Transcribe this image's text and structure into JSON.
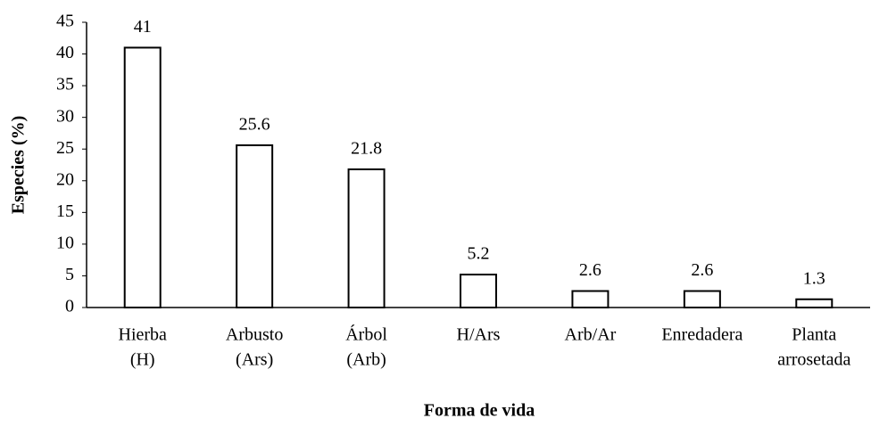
{
  "chart_data": {
    "type": "bar",
    "xlabel": "Forma de vida",
    "ylabel": "Especies  (%)",
    "categories": [
      [
        "Hierba",
        "(H)"
      ],
      [
        "Arbusto",
        "(Ars)"
      ],
      [
        "Árbol",
        "(Arb)"
      ],
      [
        "H/Ars"
      ],
      [
        "Arb/Ar"
      ],
      [
        "Enredadera"
      ],
      [
        "Planta",
        "arrosetada"
      ]
    ],
    "values": [
      41,
      25.6,
      21.8,
      5.2,
      2.6,
      2.6,
      1.3
    ],
    "color": "#ffffff",
    "ylim": [
      0,
      45
    ],
    "yticks": [
      0,
      5,
      10,
      15,
      20,
      25,
      30,
      35,
      40,
      45
    ],
    "grid": false
  }
}
